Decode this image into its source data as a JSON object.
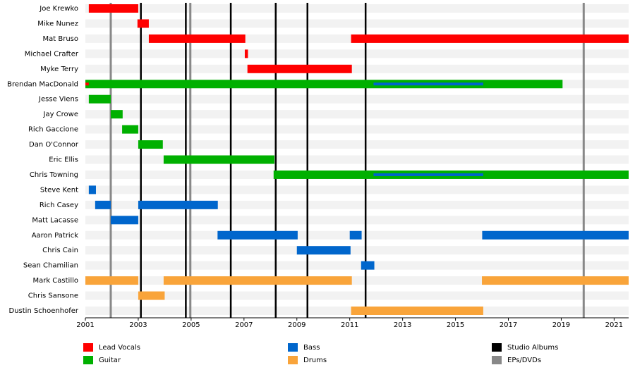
{
  "chart_data": {
    "type": "timeline",
    "categories": [
      "Joe Krewko",
      "Mike Nunez",
      "Mat Bruso",
      "Michael Crafter",
      "Myke Terry",
      "Brendan MacDonald",
      "Jesse Viens",
      "Jay Crowe",
      "Rich Gaccione",
      "Dan O'Connor",
      "Eric Ellis",
      "Chris Towning",
      "Steve Kent",
      "Rich Casey",
      "Matt Lacasse",
      "Aaron Patrick",
      "Chris Cain",
      "Sean Chamilian",
      "Mark Castillo",
      "Chris Sansone",
      "Dustin Schoenhofer"
    ],
    "series": [
      {
        "name": "Lead Vocals",
        "color": "#ff0000",
        "values": [
          [
            [
              2001.13,
              2003.0
            ]
          ],
          [
            [
              2002.97,
              2003.4
            ]
          ],
          [
            [
              2003.4,
              2007.05
            ],
            [
              2011.05,
              2021.55
            ]
          ],
          [
            [
              2007.03,
              2007.15
            ]
          ],
          [
            [
              2007.13,
              2011.08
            ]
          ],
          [
            [
              2001.0,
              2001.13
            ]
          ],
          [],
          [],
          [],
          [],
          [],
          [],
          [],
          [],
          [],
          [],
          [],
          [],
          [],
          [],
          []
        ]
      },
      {
        "name": "Guitar",
        "color": "#00b000",
        "values": [
          [],
          [],
          [],
          [],
          [],
          [
            [
              2001.0,
              2019.05
            ]
          ],
          [
            [
              2001.13,
              2001.96
            ]
          ],
          [
            [
              2001.96,
              2002.41
            ]
          ],
          [
            [
              2002.39,
              2003.0
            ]
          ],
          [
            [
              2003.0,
              2003.93
            ]
          ],
          [
            [
              2003.96,
              2008.15
            ]
          ],
          [
            [
              2008.12,
              2021.55
            ]
          ],
          [],
          [],
          [],
          [],
          [],
          [],
          [],
          [],
          []
        ]
      },
      {
        "name": "Bass",
        "color": "#0066cc",
        "values": [
          [],
          [],
          [],
          [],
          [],
          [
            [
              2011.9,
              2016.05
            ]
          ],
          [],
          [],
          [],
          [],
          [],
          [
            [
              2011.9,
              2016.05
            ]
          ],
          [
            [
              2001.13,
              2001.4
            ]
          ],
          [
            [
              2001.37,
              2001.96
            ],
            [
              2003.0,
              2006.01
            ]
          ],
          [
            [
              2001.96,
              2003.0
            ]
          ],
          [
            [
              2006.0,
              2009.03
            ],
            [
              2011.0,
              2011.45
            ],
            [
              2016.01,
              2021.55
            ]
          ],
          [
            [
              2009.0,
              2011.03
            ]
          ],
          [
            [
              2011.43,
              2011.93
            ]
          ],
          [],
          [],
          []
        ]
      },
      {
        "name": "Drums",
        "color": "#f9a43a",
        "values": [
          [],
          [],
          [],
          [],
          [],
          [],
          [],
          [],
          [],
          [],
          [],
          [],
          [],
          [],
          [],
          [],
          [],
          [],
          [
            [
              2001.0,
              2003.0
            ],
            [
              2003.96,
              2011.08
            ],
            [
              2016.0,
              2021.55
            ]
          ],
          [
            [
              2003.0,
              2004.0
            ]
          ],
          [
            [
              2011.05,
              2016.05
            ]
          ]
        ]
      }
    ],
    "events": [
      {
        "name": "Studio Albums",
        "color": "#000000",
        "values": [
          2003.1,
          2004.8,
          2006.5,
          2008.2,
          2009.4,
          2011.6
        ]
      },
      {
        "name": "EPs/DVDs",
        "color": "#888888",
        "values": [
          2001.96,
          2004.97,
          2019.85
        ]
      }
    ],
    "xlim": [
      2001,
      2021.55
    ],
    "xticks": [
      2001,
      2003,
      2005,
      2007,
      2009,
      2011,
      2013,
      2015,
      2017,
      2019,
      2021
    ]
  }
}
